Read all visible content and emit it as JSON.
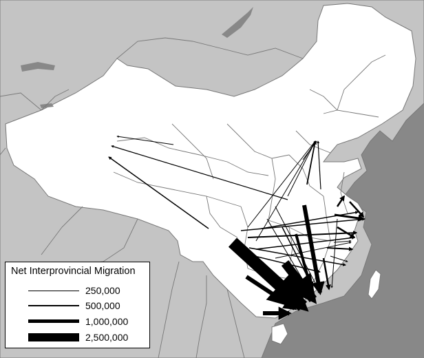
{
  "legend": {
    "title": "Net Interprovincial Migration",
    "items": [
      {
        "label": "250,000",
        "value": 250000
      },
      {
        "label": "500,000",
        "value": 500000
      },
      {
        "label": "1,000,000",
        "value": 1000000
      },
      {
        "label": "2,500,000",
        "value": 2500000
      }
    ]
  },
  "colors": {
    "ocean": "#888888",
    "neighbor_land": "#c4c4c4",
    "china": "#ffffff",
    "borders": "#777777",
    "flow": "#000000"
  }
}
